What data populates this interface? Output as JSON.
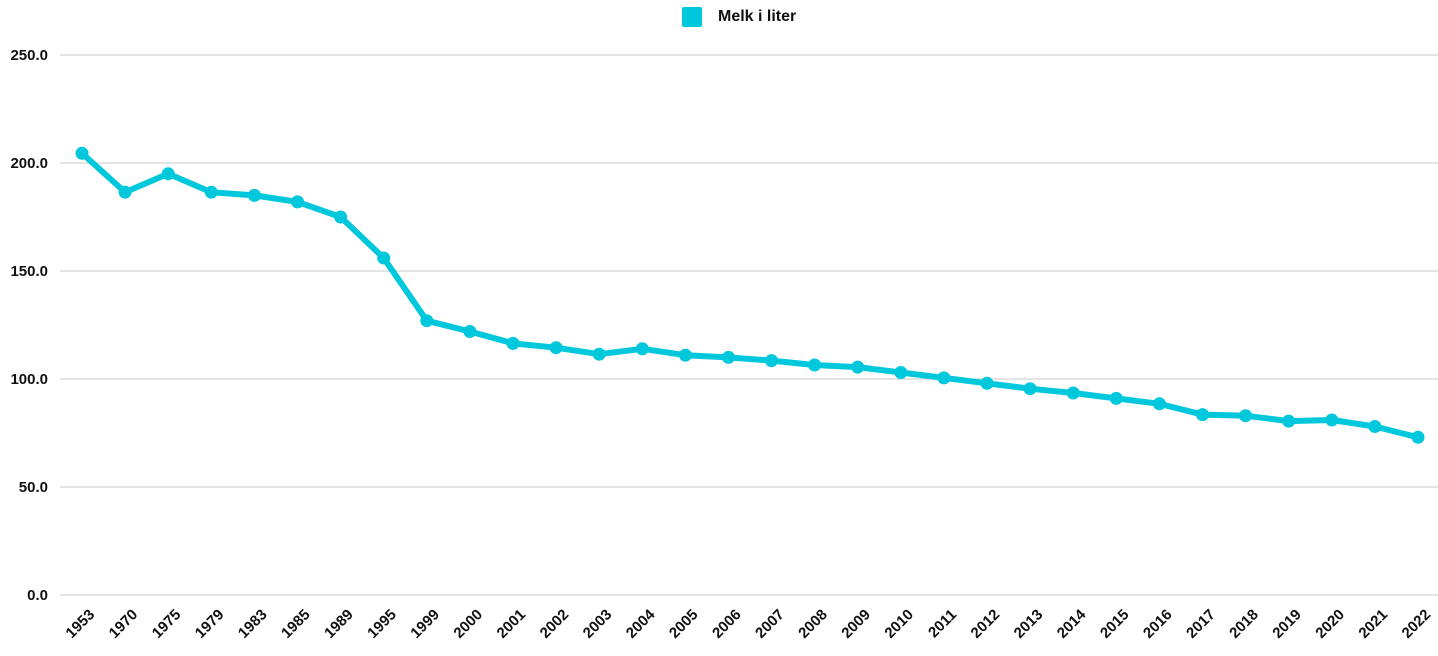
{
  "chart_data": {
    "type": "line",
    "title": "",
    "xlabel": "",
    "ylabel": "",
    "categories": [
      "1953",
      "1970",
      "1975",
      "1979",
      "1983",
      "1985",
      "1989",
      "1995",
      "1999",
      "2000",
      "2001",
      "2002",
      "2003",
      "2004",
      "2005",
      "2006",
      "2007",
      "2008",
      "2009",
      "2010",
      "2011",
      "2012",
      "2013",
      "2014",
      "2015",
      "2016",
      "2017",
      "2018",
      "2019",
      "2020",
      "2021",
      "2022"
    ],
    "series": [
      {
        "name": "Melk i liter",
        "color": "#00C8DC",
        "values": [
          204.5,
          186.5,
          195.0,
          186.5,
          185.0,
          182.0,
          175.0,
          156.0,
          127.0,
          122.0,
          116.5,
          114.5,
          111.5,
          114.0,
          111.0,
          110.0,
          108.5,
          106.5,
          105.5,
          103.0,
          100.5,
          98.0,
          95.5,
          93.5,
          91.0,
          88.5,
          83.5,
          83.0,
          80.5,
          81.0,
          78.0,
          73.0
        ]
      }
    ],
    "ylim": [
      0,
      250
    ],
    "yticks": [
      "0.0",
      "50.0",
      "100.0",
      "150.0",
      "200.0",
      "250.0"
    ],
    "grid": true,
    "legend_position": "top-center"
  },
  "legend": {
    "label": "Melk i liter",
    "color": "#00C8DC"
  }
}
